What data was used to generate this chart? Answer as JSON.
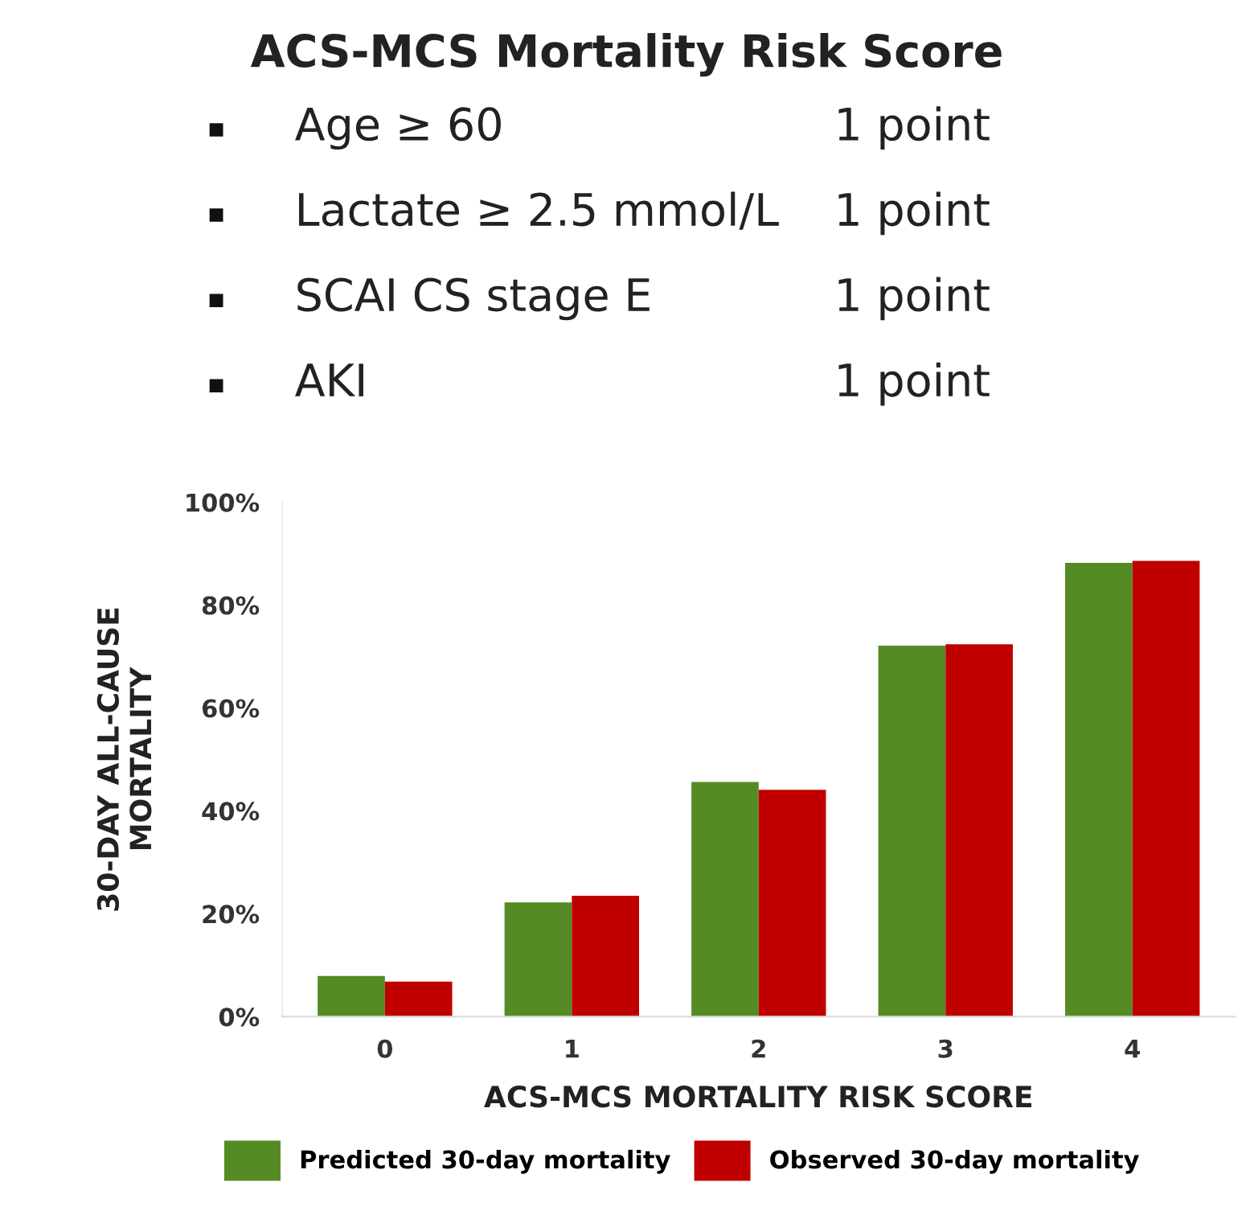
{
  "chart_data": {
    "type": "bar",
    "title": "ACS-MCS Mortality Risk Score",
    "annotations": [
      "Age ≥ 60",
      "1 point",
      "Lactate ≥ 2.5 mmol/L",
      "1 point",
      "SCAI CS stage E",
      "1 point",
      "AKI",
      "1 point"
    ],
    "xlabel": "ACS-MCS MORTALITY RISK SCORE",
    "ylabel": "30-DAY ALL-CAUSE\nMORTALITY",
    "categories": [
      "0",
      "1",
      "2",
      "3",
      "4"
    ],
    "series": [
      {
        "name": "Predicted 30-day mortality",
        "color": "#558b25",
        "values": [
          7.9,
          22.2,
          45.6,
          72.1,
          88.2
        ]
      },
      {
        "name": "Observed 30-day mortality",
        "color": "#c00000",
        "values": [
          6.8,
          23.5,
          44.1,
          72.4,
          88.6
        ]
      }
    ],
    "ylim": [
      0,
      100
    ],
    "yticks": [
      {
        "value": 0,
        "label": "0%"
      },
      {
        "value": 20,
        "label": "20%"
      },
      {
        "value": 40,
        "label": "40%"
      },
      {
        "value": 60,
        "label": "60%"
      },
      {
        "value": 80,
        "label": "80%"
      },
      {
        "value": 100,
        "label": "100%"
      }
    ],
    "grid": false,
    "legend": "bottom"
  }
}
